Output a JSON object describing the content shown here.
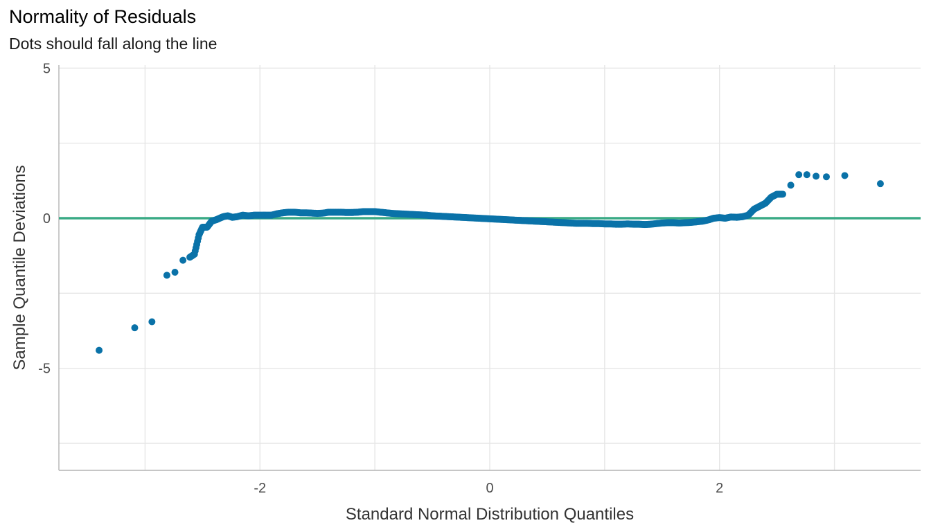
{
  "header": {
    "title": "Normality of Residuals",
    "subtitle": "Dots should fall along the line"
  },
  "chart_data": {
    "type": "scatter",
    "title": "Normality of Residuals",
    "subtitle": "Dots should fall along the line",
    "xlabel": "Standard Normal Distribution Quantiles",
    "ylabel": "Sample Quantile Deviations",
    "xlim": [
      -3.75,
      3.75
    ],
    "ylim": [
      -8.4,
      5.1
    ],
    "x_ticks": [
      -2,
      0,
      2
    ],
    "x_tick_labels": [
      "-2",
      "0",
      "2"
    ],
    "y_ticks": [
      -5,
      0,
      5
    ],
    "y_tick_labels": [
      "-5",
      "0",
      "5"
    ],
    "grid": true,
    "reference_line": {
      "y": 0,
      "color": "#3aaa85"
    },
    "point_color": "#0a72a8",
    "points": {
      "x": [
        -3.4,
        -3.09,
        -2.94,
        -2.81,
        -2.74,
        -2.67,
        -2.61,
        -2.57,
        -2.53,
        -2.5,
        -2.46,
        -2.42,
        -2.38,
        -2.35,
        -2.32,
        -2.28,
        -2.24,
        -2.2,
        -2.15,
        -2.1,
        -2.05,
        -2.0,
        -1.95,
        -1.9,
        -1.85,
        -1.8,
        -1.75,
        -1.7,
        -1.65,
        -1.6,
        -1.55,
        -1.5,
        -1.45,
        -1.4,
        -1.35,
        -1.3,
        -1.25,
        -1.2,
        -1.15,
        -1.1,
        -1.05,
        -1.0,
        -0.95,
        -0.9,
        -0.85,
        -0.8,
        -0.75,
        -0.7,
        -0.65,
        -0.6,
        -0.55,
        -0.5,
        -0.45,
        -0.4,
        -0.35,
        -0.3,
        -0.25,
        -0.2,
        -0.15,
        -0.1,
        -0.05,
        0.0,
        0.05,
        0.1,
        0.15,
        0.2,
        0.25,
        0.3,
        0.35,
        0.4,
        0.45,
        0.5,
        0.55,
        0.6,
        0.65,
        0.7,
        0.75,
        0.8,
        0.85,
        0.9,
        0.95,
        1.0,
        1.05,
        1.1,
        1.15,
        1.2,
        1.25,
        1.3,
        1.35,
        1.4,
        1.45,
        1.5,
        1.55,
        1.6,
        1.65,
        1.7,
        1.75,
        1.8,
        1.85,
        1.9,
        1.95,
        2.0,
        2.05,
        2.1,
        2.15,
        2.2,
        2.25,
        2.3,
        2.35,
        2.4,
        2.45,
        2.5,
        2.55,
        2.62,
        2.69,
        2.76,
        2.84,
        2.93,
        3.09,
        3.4
      ],
      "y": [
        -4.4,
        -3.65,
        -3.45,
        -1.9,
        -1.8,
        -1.4,
        -1.3,
        -1.2,
        -0.55,
        -0.3,
        -0.3,
        -0.1,
        -0.05,
        0.0,
        0.05,
        0.08,
        0.03,
        0.05,
        0.1,
        0.08,
        0.1,
        0.1,
        0.1,
        0.1,
        0.15,
        0.18,
        0.2,
        0.2,
        0.18,
        0.18,
        0.17,
        0.16,
        0.17,
        0.2,
        0.2,
        0.2,
        0.19,
        0.19,
        0.2,
        0.22,
        0.22,
        0.22,
        0.2,
        0.18,
        0.16,
        0.15,
        0.14,
        0.13,
        0.12,
        0.11,
        0.1,
        0.08,
        0.07,
        0.06,
        0.05,
        0.04,
        0.03,
        0.02,
        0.01,
        0.0,
        -0.01,
        -0.02,
        -0.03,
        -0.04,
        -0.05,
        -0.06,
        -0.07,
        -0.08,
        -0.09,
        -0.1,
        -0.11,
        -0.12,
        -0.13,
        -0.14,
        -0.15,
        -0.16,
        -0.17,
        -0.17,
        -0.17,
        -0.18,
        -0.18,
        -0.19,
        -0.19,
        -0.2,
        -0.2,
        -0.19,
        -0.2,
        -0.2,
        -0.21,
        -0.2,
        -0.18,
        -0.16,
        -0.15,
        -0.15,
        -0.16,
        -0.15,
        -0.14,
        -0.12,
        -0.1,
        -0.06,
        0.0,
        0.02,
        0.0,
        0.04,
        0.03,
        0.05,
        0.1,
        0.3,
        0.4,
        0.5,
        0.7,
        0.8,
        0.8,
        1.1,
        1.45,
        1.45,
        1.4,
        1.38,
        1.42,
        1.15
      ]
    }
  }
}
